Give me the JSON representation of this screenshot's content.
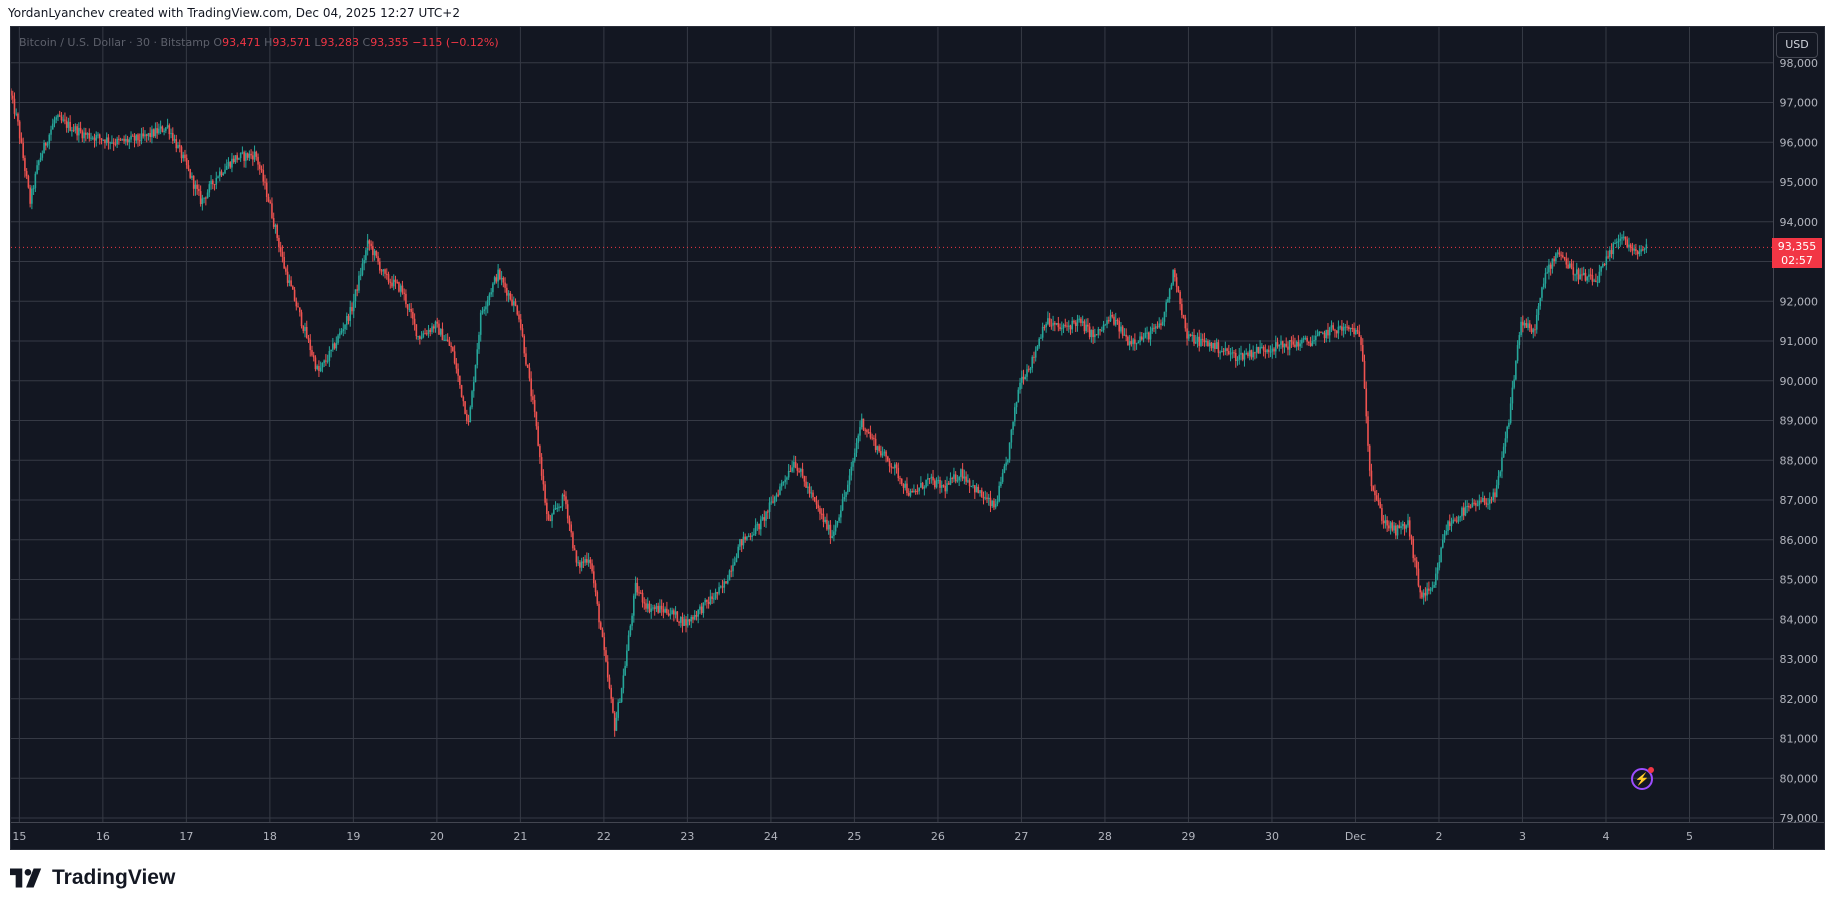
{
  "header": {
    "attribution": "YordanLyanchev created with TradingView.com, Dec 04, 2025 12:27 UTC+2"
  },
  "legend": {
    "symbol": "Bitcoin / U.S. Dollar · 30 · Bitstamp",
    "o_label": "O",
    "o": "93,471",
    "h_label": "H",
    "h": "93,571",
    "l_label": "L",
    "l": "93,283",
    "c_label": "C",
    "c": "93,355",
    "change": "−115 (−0.12%)"
  },
  "currency_button": "USD",
  "last_price": {
    "price": "93,355",
    "countdown": "02:57"
  },
  "footer": {
    "brand": "TradingView"
  },
  "colors": {
    "background": "#131722",
    "grid": "#363a45",
    "up": "#26a69a",
    "down": "#ef5350",
    "price_line": "#f23645",
    "axis_text": "#b2b5be"
  },
  "chart_data": {
    "type": "candlestick",
    "symbol": "BTCUSD",
    "interval": "30",
    "exchange": "Bitstamp",
    "y_ticks": [
      79000,
      80000,
      81000,
      82000,
      83000,
      84000,
      85000,
      86000,
      87000,
      88000,
      89000,
      90000,
      91000,
      92000,
      93000,
      94000,
      95000,
      96000,
      97000,
      98000
    ],
    "y_tick_labels": [
      "79,000",
      "80,000",
      "81,000",
      "82,000",
      "83,000",
      "84,000",
      "85,000",
      "86,000",
      "87,000",
      "88,000",
      "89,000",
      "90,000",
      "91,000",
      "92,000",
      "93,000",
      "94,000",
      "95,000",
      "96,000",
      "97,000",
      "98,000"
    ],
    "ylim": [
      78900,
      98900
    ],
    "x_ticks": [
      {
        "label": "15",
        "day": 0
      },
      {
        "label": "16",
        "day": 1
      },
      {
        "label": "17",
        "day": 2
      },
      {
        "label": "18",
        "day": 3
      },
      {
        "label": "19",
        "day": 4
      },
      {
        "label": "20",
        "day": 5
      },
      {
        "label": "21",
        "day": 6
      },
      {
        "label": "22",
        "day": 7
      },
      {
        "label": "23",
        "day": 8
      },
      {
        "label": "24",
        "day": 9
      },
      {
        "label": "25",
        "day": 10
      },
      {
        "label": "26",
        "day": 11
      },
      {
        "label": "27",
        "day": 12
      },
      {
        "label": "28",
        "day": 13
      },
      {
        "label": "29",
        "day": 14
      },
      {
        "label": "30",
        "day": 15
      },
      {
        "label": "Dec",
        "day": 16
      },
      {
        "label": "2",
        "day": 17
      },
      {
        "label": "3",
        "day": 18
      },
      {
        "label": "4",
        "day": 19
      },
      {
        "label": "5",
        "day": 20
      }
    ],
    "xlim": [
      -0.1,
      21.0
    ],
    "last_price": 93355,
    "price_path": [
      [
        -0.1,
        97300
      ],
      [
        0.0,
        96500
      ],
      [
        0.15,
        94500
      ],
      [
        0.25,
        95500
      ],
      [
        0.45,
        96600
      ],
      [
        0.8,
        96200
      ],
      [
        1.2,
        96000
      ],
      [
        1.5,
        96100
      ],
      [
        1.8,
        96400
      ],
      [
        2.0,
        95500
      ],
      [
        2.2,
        94500
      ],
      [
        2.4,
        95200
      ],
      [
        2.6,
        95600
      ],
      [
        2.85,
        95700
      ],
      [
        3.0,
        94600
      ],
      [
        3.2,
        92800
      ],
      [
        3.4,
        91500
      ],
      [
        3.6,
        90200
      ],
      [
        3.75,
        90700
      ],
      [
        4.0,
        91800
      ],
      [
        4.2,
        93500
      ],
      [
        4.4,
        92600
      ],
      [
        4.6,
        92300
      ],
      [
        4.8,
        91100
      ],
      [
        5.0,
        91400
      ],
      [
        5.2,
        90800
      ],
      [
        5.4,
        88900
      ],
      [
        5.55,
        91700
      ],
      [
        5.75,
        92700
      ],
      [
        6.0,
        91700
      ],
      [
        6.2,
        89000
      ],
      [
        6.35,
        86400
      ],
      [
        6.55,
        87100
      ],
      [
        6.7,
        85300
      ],
      [
        6.85,
        85600
      ],
      [
        7.0,
        83500
      ],
      [
        7.15,
        81300
      ],
      [
        7.25,
        82500
      ],
      [
        7.4,
        84800
      ],
      [
        7.55,
        84300
      ],
      [
        7.8,
        84200
      ],
      [
        8.0,
        83900
      ],
      [
        8.2,
        84300
      ],
      [
        8.45,
        84800
      ],
      [
        8.65,
        85900
      ],
      [
        8.9,
        86400
      ],
      [
        9.1,
        87200
      ],
      [
        9.3,
        88000
      ],
      [
        9.55,
        86900
      ],
      [
        9.75,
        86100
      ],
      [
        9.95,
        87400
      ],
      [
        10.1,
        89000
      ],
      [
        10.3,
        88300
      ],
      [
        10.5,
        87800
      ],
      [
        10.7,
        87100
      ],
      [
        10.9,
        87500
      ],
      [
        11.1,
        87300
      ],
      [
        11.3,
        87700
      ],
      [
        11.5,
        87200
      ],
      [
        11.7,
        86800
      ],
      [
        11.85,
        88000
      ],
      [
        12.0,
        90000
      ],
      [
        12.15,
        90500
      ],
      [
        12.3,
        91500
      ],
      [
        12.5,
        91300
      ],
      [
        12.7,
        91500
      ],
      [
        12.9,
        91100
      ],
      [
        13.1,
        91600
      ],
      [
        13.3,
        91000
      ],
      [
        13.5,
        91100
      ],
      [
        13.7,
        91400
      ],
      [
        13.85,
        92800
      ],
      [
        14.0,
        91100
      ],
      [
        14.3,
        90900
      ],
      [
        14.6,
        90600
      ],
      [
        14.9,
        90800
      ],
      [
        15.2,
        90900
      ],
      [
        15.5,
        91000
      ],
      [
        15.75,
        91300
      ],
      [
        16.0,
        91300
      ],
      [
        16.1,
        90900
      ],
      [
        16.2,
        87500
      ],
      [
        16.35,
        86500
      ],
      [
        16.5,
        86200
      ],
      [
        16.65,
        86400
      ],
      [
        16.8,
        84600
      ],
      [
        16.95,
        84700
      ],
      [
        17.1,
        86300
      ],
      [
        17.3,
        86700
      ],
      [
        17.5,
        86900
      ],
      [
        17.7,
        87100
      ],
      [
        17.85,
        88900
      ],
      [
        18.0,
        91500
      ],
      [
        18.15,
        91200
      ],
      [
        18.3,
        92700
      ],
      [
        18.45,
        93300
      ],
      [
        18.6,
        92800
      ],
      [
        18.75,
        92600
      ],
      [
        18.9,
        92500
      ],
      [
        19.05,
        93100
      ],
      [
        19.2,
        93700
      ],
      [
        19.35,
        93200
      ],
      [
        19.5,
        93355
      ]
    ]
  }
}
